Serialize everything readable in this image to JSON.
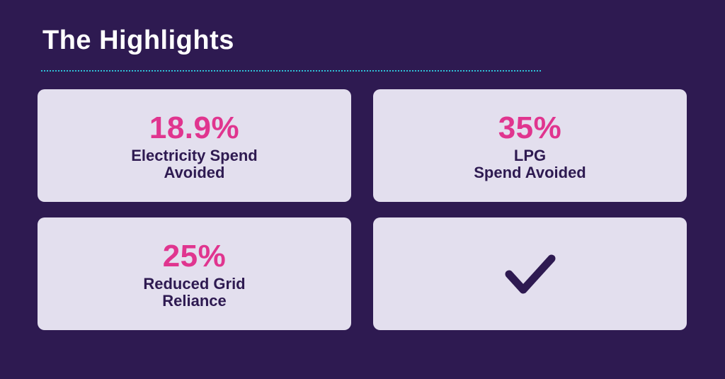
{
  "title": "The Highlights",
  "accent_color": "#e0358f",
  "text_color": "#2e1a51",
  "background_color": "#2e1a51",
  "card_color": "#e3dfee",
  "divider_color": "#2fc3d8",
  "cards": [
    {
      "value": "18.9%",
      "label_lines": [
        "Electricity Spend",
        "Avoided"
      ]
    },
    {
      "value": "35%",
      "label_lines": [
        "LPG",
        "Spend Avoided"
      ]
    },
    {
      "value": "25%",
      "label_lines": [
        "Reduced Grid",
        "Reliance"
      ]
    },
    {
      "icon": "checkmark-icon"
    }
  ]
}
